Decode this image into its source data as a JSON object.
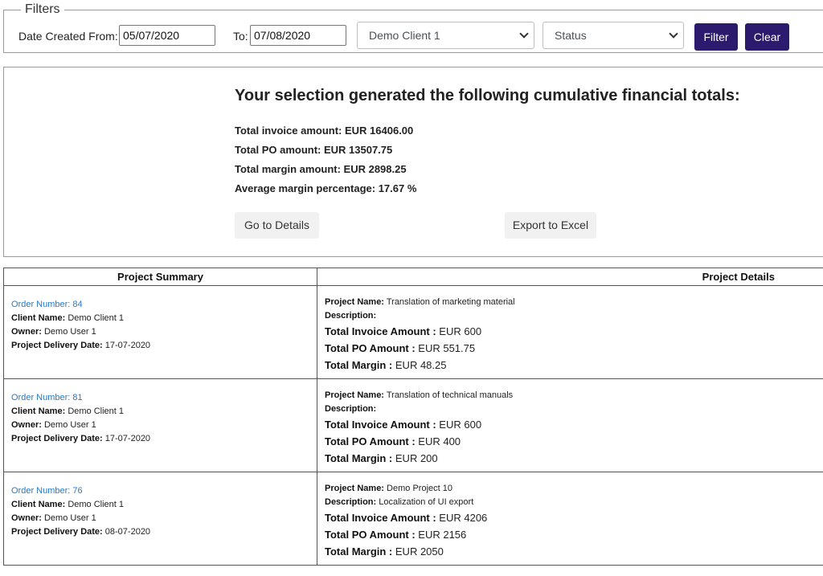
{
  "filters": {
    "legend": "Filters",
    "date_from_label": "Date Created From:",
    "date_from_value": "05/07/2020",
    "date_to_label": "To:",
    "date_to_value": "07/08/2020",
    "client_select_value": "Demo Client 1",
    "status_select_value": "Status",
    "filter_button": "Filter",
    "clear_button": "Clear",
    "accent_color": "#2b1a6d"
  },
  "totals": {
    "heading": "Your selection generated the following cumulative financial totals:",
    "invoice": "Total invoice amount: EUR 16406.00",
    "po": "Total PO amount: EUR 13507.75",
    "margin": "Total margin amount: EUR 2898.25",
    "avg_margin": "Average margin percentage: 17.67 %",
    "details_button": "Go to Details",
    "export_button": "Export to Excel"
  },
  "table": {
    "headers": [
      "Project Summary",
      "Project Details"
    ],
    "labels": {
      "client_name": "Client Name:",
      "owner": "Owner:",
      "delivery_date": "Project Delivery Date:",
      "project_name": "Project Name:",
      "description": "Description:",
      "total_invoice": "Total Invoice Amount :",
      "total_po": "Total PO Amount :",
      "total_margin": "Total Margin :"
    },
    "rows": [
      {
        "order": "Order Number: 84",
        "client": "Demo Client 1",
        "owner": "Demo User 1",
        "delivery": "17-07-2020",
        "project_name": "Translation of marketing material",
        "description": "",
        "invoice": "EUR 600",
        "po": "EUR 551.75",
        "margin": "EUR 48.25"
      },
      {
        "order": "Order Number: 81",
        "client": "Demo Client 1",
        "owner": "Demo User 1",
        "delivery": "17-07-2020",
        "project_name": "Translation of technical manuals",
        "description": "",
        "invoice": "EUR 600",
        "po": "EUR 400",
        "margin": "EUR 200"
      },
      {
        "order": "Order Number: 76",
        "client": "Demo Client 1",
        "owner": "Demo User 1",
        "delivery": "08-07-2020",
        "project_name": "Demo Project 10",
        "description": "Localization of UI export",
        "invoice": "EUR 4206",
        "po": "EUR 2156",
        "margin": "EUR 2050"
      }
    ]
  }
}
